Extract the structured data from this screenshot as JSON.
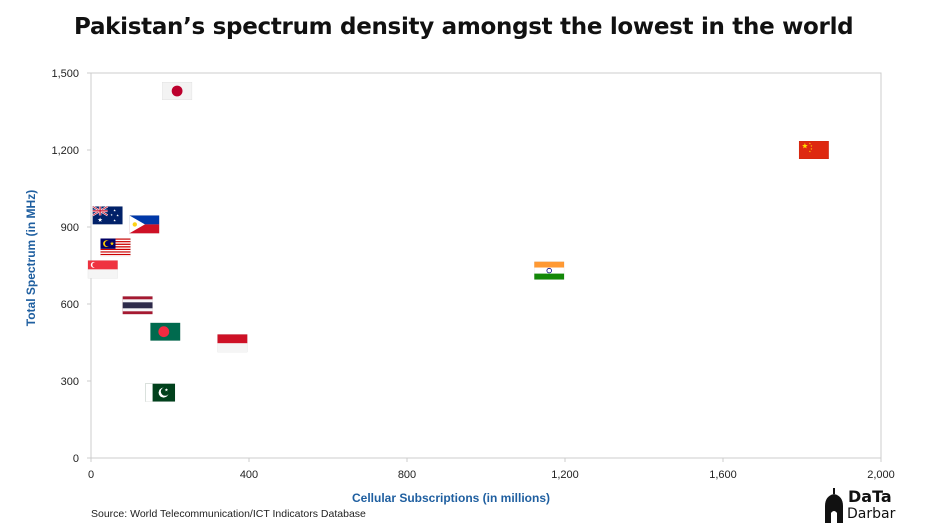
{
  "chart_data": {
    "type": "scatter",
    "title": "Pakistan’s spectrum density amongst the lowest in the world",
    "xlabel": "Cellular Subscriptions (in millions)",
    "ylabel": "Total Spectrum (in MHz)",
    "xlim": [
      0,
      2000
    ],
    "ylim": [
      0,
      1500
    ],
    "xticks": [
      "0",
      "400",
      "800",
      "1,200",
      "1,600",
      "2,000"
    ],
    "xtick_values": [
      0,
      400,
      800,
      1200,
      1600,
      2000
    ],
    "yticks": [
      "0",
      "300",
      "600",
      "900",
      "1,200",
      "1,500"
    ],
    "ytick_values": [
      0,
      300,
      600,
      900,
      1200,
      1500
    ],
    "grid": false,
    "points": [
      {
        "country": "Japan",
        "flag": "japan-flag-icon",
        "x": 218,
        "y": 1430
      },
      {
        "country": "China",
        "flag": "china-flag-icon",
        "x": 1830,
        "y": 1200
      },
      {
        "country": "Australia",
        "flag": "australia-flag-icon",
        "x": 42,
        "y": 945
      },
      {
        "country": "Philippines",
        "flag": "philippines-flag-icon",
        "x": 135,
        "y": 910
      },
      {
        "country": "Malaysia",
        "flag": "malaysia-flag-icon",
        "x": 62,
        "y": 820
      },
      {
        "country": "Singapore",
        "flag": "singapore-flag-icon",
        "x": 30,
        "y": 735
      },
      {
        "country": "India",
        "flag": "india-flag-icon",
        "x": 1160,
        "y": 730
      },
      {
        "country": "Thailand",
        "flag": "thailand-flag-icon",
        "x": 118,
        "y": 595
      },
      {
        "country": "Bangladesh",
        "flag": "bangladesh-flag-icon",
        "x": 188,
        "y": 492
      },
      {
        "country": "Indonesia",
        "flag": "indonesia-flag-icon",
        "x": 358,
        "y": 447
      },
      {
        "country": "Pakistan",
        "flag": "pakistan-flag-icon",
        "x": 175,
        "y": 255
      }
    ],
    "source": "Source: World Telecommunication/ICT Indicators Database"
  },
  "colors": {
    "axis_label": "#1f5fa0",
    "frame": "#cccccc",
    "title": "#111111"
  },
  "logo": {
    "line1": "DaTa",
    "line2": "Darbar"
  }
}
